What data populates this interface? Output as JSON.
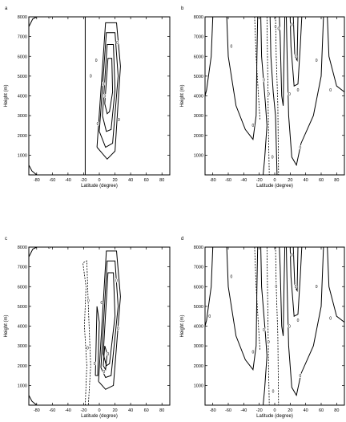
{
  "chart_data": [
    {
      "type": "contour",
      "panel_label": "a",
      "xlabel": "Latitude (degree)",
      "ylabel": "Height (m)",
      "xlim": [
        -90,
        90
      ],
      "ylim": [
        0,
        8000
      ],
      "xticks": [
        -80,
        -60,
        -40,
        -20,
        0,
        20,
        40,
        60,
        80
      ],
      "yticks": [
        1000,
        2000,
        3000,
        4000,
        5000,
        6000,
        7000,
        8000
      ],
      "contour_labels": [
        "0",
        "0",
        "0",
        "0",
        "0",
        "0",
        "0",
        "0"
      ]
    },
    {
      "type": "contour",
      "panel_label": "b",
      "xlabel": "Latitude (degree)",
      "ylabel": "Height (m)",
      "xlim": [
        -90,
        90
      ],
      "ylim": [
        0,
        8000
      ],
      "xticks": [
        -80,
        -60,
        -40,
        -20,
        0,
        20,
        40,
        60,
        80
      ],
      "yticks": [
        1000,
        2000,
        3000,
        4000,
        5000,
        6000,
        7000,
        8000
      ],
      "contour_labels": [
        "0",
        "0",
        "0",
        "0",
        "0",
        "0",
        "0",
        "0",
        "0",
        "0",
        "0",
        "0",
        "0",
        "0"
      ]
    },
    {
      "type": "contour",
      "panel_label": "c",
      "xlabel": "Latitude (degree)",
      "ylabel": "Height (m)",
      "xlim": [
        -90,
        90
      ],
      "ylim": [
        0,
        8000
      ],
      "xticks": [
        -80,
        -60,
        -40,
        -20,
        0,
        20,
        40,
        60,
        80
      ],
      "yticks": [
        1000,
        2000,
        3000,
        4000,
        5000,
        6000,
        7000,
        8000
      ],
      "contour_labels": [
        "0",
        "0",
        "0",
        "0",
        "0",
        "0",
        "0",
        "0",
        "0"
      ]
    },
    {
      "type": "contour",
      "panel_label": "d",
      "xlabel": "Latitude (degree)",
      "ylabel": "Height (m)",
      "xlim": [
        -90,
        90
      ],
      "ylim": [
        0,
        8000
      ],
      "xticks": [
        -80,
        -60,
        -40,
        -20,
        0,
        20,
        40,
        60,
        80
      ],
      "yticks": [
        1000,
        2000,
        3000,
        4000,
        5000,
        6000,
        7000,
        8000
      ],
      "contour_labels": [
        "0",
        "0",
        "0",
        "0",
        "0",
        "0",
        "0",
        "0",
        "0",
        "0",
        "0",
        "0",
        "0",
        "0"
      ]
    }
  ]
}
